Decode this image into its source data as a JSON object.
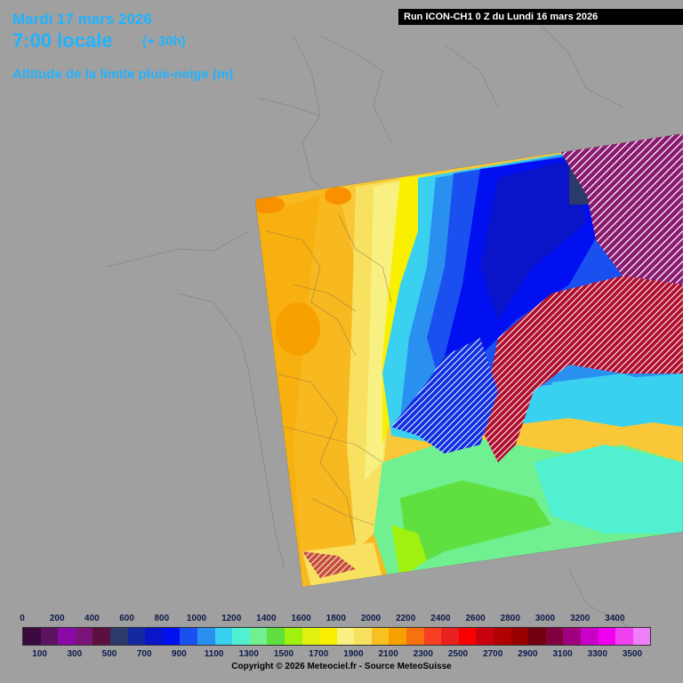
{
  "header": {
    "date": "Mardi 17 mars 2026",
    "time": "7:00 locale",
    "lead": "(+ 30h)",
    "parameter": "Altitude de la limite pluie-neige (m)",
    "run": "Run ICON-CH1 0 Z du Lundi 16 mars 2026"
  },
  "legend": {
    "top_labels": [
      "0",
      "200",
      "400",
      "600",
      "800",
      "1000",
      "1200",
      "1400",
      "1600",
      "1800",
      "2000",
      "2200",
      "2400",
      "2600",
      "2800",
      "3000",
      "3200",
      "3400"
    ],
    "bottom_labels": [
      "100",
      "300",
      "500",
      "700",
      "900",
      "1100",
      "1300",
      "1500",
      "1700",
      "1900",
      "2100",
      "2300",
      "2500",
      "2700",
      "2900",
      "3100",
      "3300",
      "3500"
    ],
    "colors": [
      "#3a0a3e",
      "#5a1460",
      "#8a0aa8",
      "#7a1478",
      "#5c1040",
      "#2a3a6a",
      "#1428a0",
      "#0a14c8",
      "#0010f0",
      "#1a50f0",
      "#2a90f0",
      "#3ad0f0",
      "#50f0d0",
      "#70f090",
      "#60e040",
      "#a0f010",
      "#e0f010",
      "#f8f000",
      "#f8f080",
      "#f8e060",
      "#f8c020",
      "#f8a000",
      "#f87010",
      "#f84020",
      "#e82020",
      "#f80000",
      "#c80010",
      "#b00000",
      "#980000",
      "#700010",
      "#800040",
      "#a00080",
      "#c800c8",
      "#f000f0",
      "#f040f0",
      "#f080f8"
    ],
    "copyright": "Copyright © 2026 Meteociel.fr - Source MeteoSuisse"
  }
}
